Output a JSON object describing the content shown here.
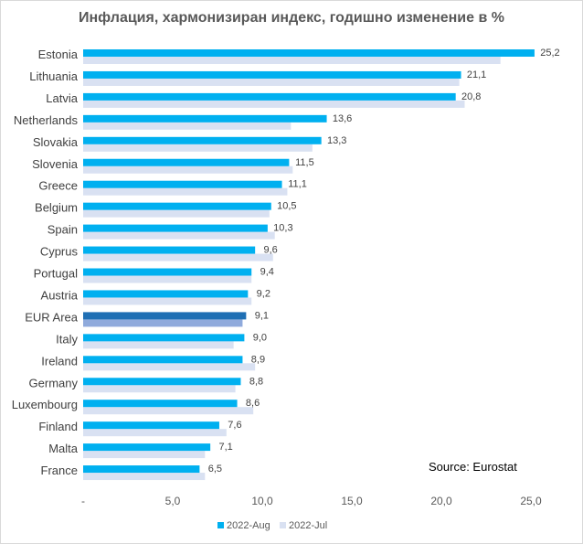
{
  "chart_data": {
    "type": "bar",
    "orientation": "horizontal",
    "title": "Инфлация, хармонизиран индекс, годишно изменение в %",
    "categories": [
      "Estonia",
      "Lithuania",
      "Latvia",
      "Netherlands",
      "Slovakia",
      "Slovenia",
      "Greece",
      "Belgium",
      "Spain",
      "Cyprus",
      "Portugal",
      "Austria",
      "EUR Area",
      "Italy",
      "Ireland",
      "Germany",
      "Luxembourg",
      "Finland",
      "Malta",
      "France"
    ],
    "series": [
      {
        "name": "2022-Aug",
        "color": "#00b0f0",
        "values": [
          25.2,
          21.1,
          20.8,
          13.6,
          13.3,
          11.5,
          11.1,
          10.5,
          10.3,
          9.6,
          9.4,
          9.2,
          9.1,
          9.0,
          8.9,
          8.8,
          8.6,
          7.6,
          7.1,
          6.5
        ],
        "labels": [
          "25,2",
          "21,1",
          "20,8",
          "13,6",
          "13,3",
          "11,5",
          "11,1",
          "10,5",
          "10,3",
          "9,6",
          "9,4",
          "9,2",
          "9,1",
          "9,0",
          "8,9",
          "8,8",
          "8,6",
          "7,6",
          "7,1",
          "6,5"
        ]
      },
      {
        "name": "2022-Jul",
        "color": "#d9e1f2",
        "values": [
          23.3,
          21.0,
          21.3,
          11.6,
          12.8,
          11.7,
          11.4,
          10.4,
          10.7,
          10.6,
          9.4,
          9.4,
          8.9,
          8.4,
          9.6,
          8.5,
          9.5,
          8.0,
          6.8,
          6.8
        ]
      }
    ],
    "highlight": {
      "category": "EUR Area",
      "aug_color": "#1f6fb4",
      "jul_color": "#8faadc"
    },
    "xlim": [
      0,
      25
    ],
    "xticks": [
      0,
      5,
      10,
      15,
      20,
      25
    ],
    "xtick_labels": [
      "-",
      "5,0",
      "10,0",
      "15,0",
      "20,0",
      "25,0"
    ],
    "xlabel": "",
    "ylabel": "",
    "grid": false,
    "legend_position": "bottom",
    "annotation": "Source: Eurostat"
  }
}
